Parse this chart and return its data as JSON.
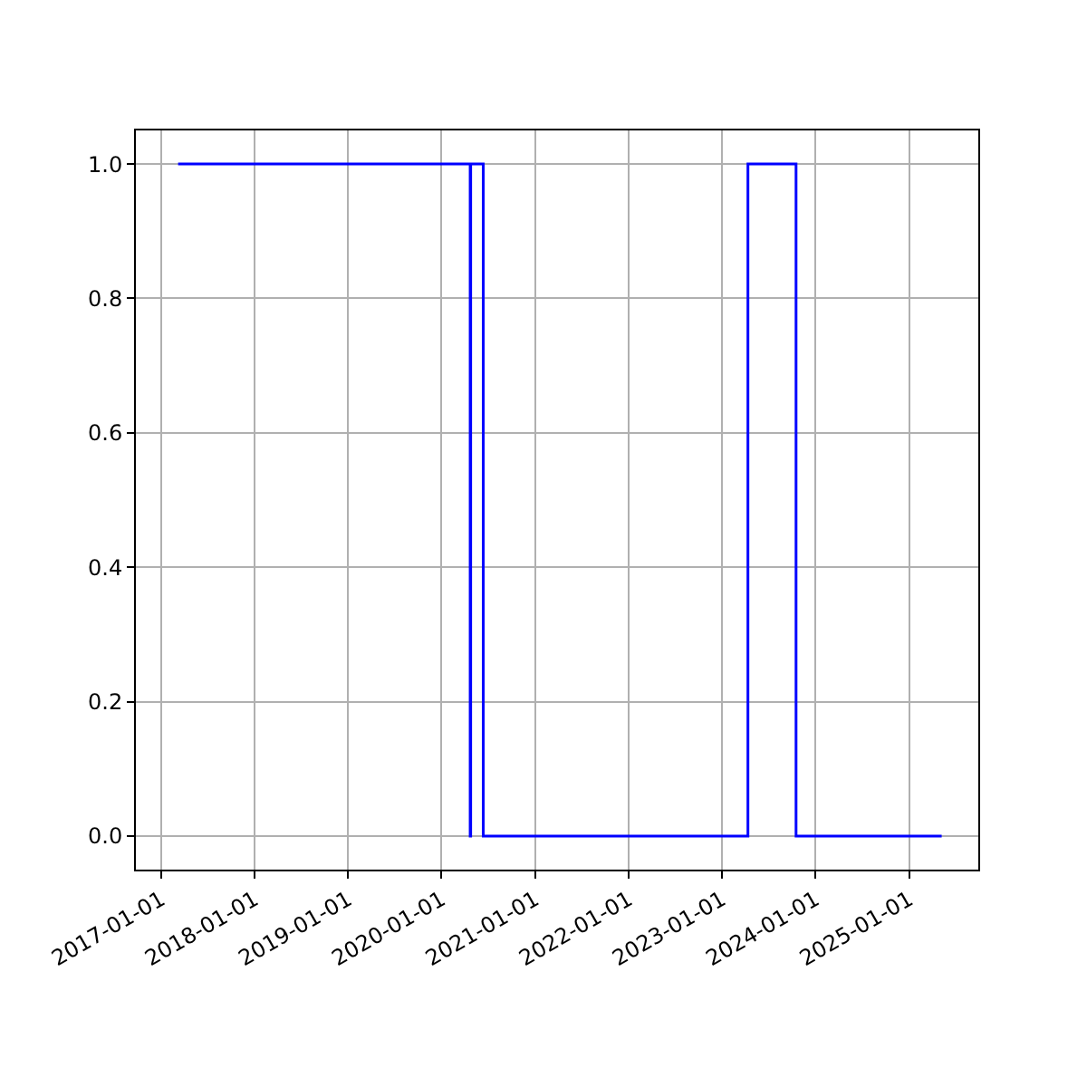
{
  "chart_data": {
    "type": "step",
    "x": [
      "2017-03-08",
      "2020-04-22",
      "2020-04-24",
      "2020-06-12",
      "2023-04-12",
      "2023-10-17",
      "2025-05-08"
    ],
    "series": [
      {
        "color": "#0000ff",
        "values": [
          1,
          0,
          1,
          0,
          1,
          0,
          0
        ]
      }
    ],
    "xlim": [
      "2016-09-24",
      "2025-09-28"
    ],
    "xticks": [
      "2017-01-01",
      "2018-01-01",
      "2019-01-01",
      "2020-01-01",
      "2021-01-01",
      "2022-01-01",
      "2023-01-01",
      "2024-01-01",
      "2025-01-01"
    ],
    "ylim": [
      -0.05,
      1.05
    ],
    "yticks": [
      {
        "value": 0,
        "label": "0.0"
      },
      {
        "value": 0.2,
        "label": "0.2"
      },
      {
        "value": 0.4,
        "label": "0.4"
      },
      {
        "value": 0.6,
        "label": "0.6"
      },
      {
        "value": 0.8,
        "label": "0.8"
      },
      {
        "value": 1,
        "label": "1.0"
      }
    ],
    "grid": true,
    "legend": false,
    "marker": "none",
    "line_style": "solid"
  }
}
